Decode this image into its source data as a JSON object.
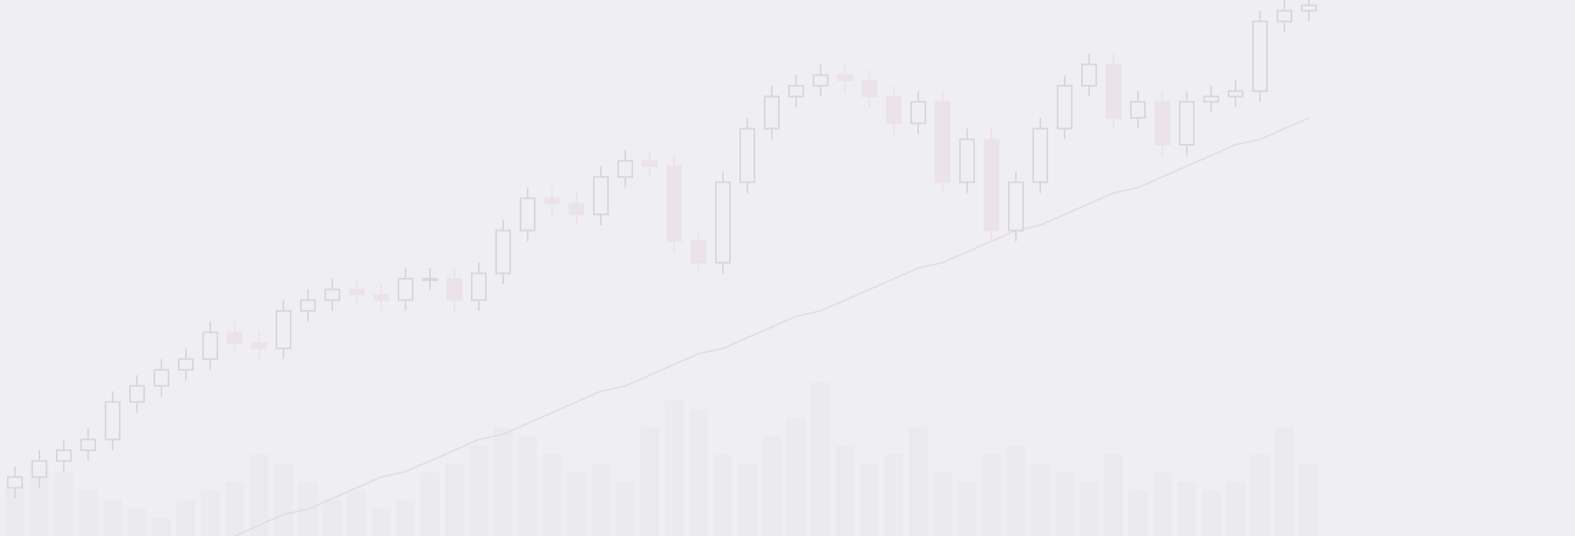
{
  "chart_data": {
    "type": "candlestick",
    "open": [
      9,
      11,
      14,
      16,
      18,
      25,
      28,
      31,
      33,
      38,
      36,
      35,
      42,
      44,
      46,
      45,
      44,
      48,
      48,
      44,
      49,
      57,
      63,
      62,
      60,
      67,
      70,
      69,
      55,
      51,
      66,
      76,
      82,
      84,
      86,
      85,
      82,
      77,
      81,
      66,
      74,
      57,
      66,
      76,
      84,
      88,
      78,
      81,
      73,
      81,
      82,
      83,
      96,
      98
    ],
    "high": [
      13,
      16,
      18,
      20,
      27,
      30,
      33,
      35,
      40,
      40,
      38,
      44,
      46,
      48,
      48,
      47,
      50,
      50,
      50,
      51,
      59,
      65,
      65,
      64,
      69,
      72,
      72,
      71,
      57,
      68,
      78,
      84,
      86,
      88,
      88,
      87,
      84,
      83,
      83,
      76,
      76,
      68,
      78,
      86,
      90,
      90,
      83,
      83,
      83,
      84,
      85,
      98,
      100,
      100
    ],
    "low": [
      7,
      9,
      12,
      14,
      16,
      23,
      26,
      29,
      31,
      34,
      33,
      33,
      40,
      42,
      43,
      42,
      42,
      46,
      42,
      42,
      47,
      55,
      60,
      58,
      58,
      65,
      67,
      53,
      49,
      49,
      64,
      74,
      80,
      82,
      83,
      80,
      75,
      75,
      64,
      64,
      55,
      55,
      64,
      74,
      82,
      76,
      76,
      71,
      71,
      79,
      80,
      81,
      94,
      96
    ],
    "close": [
      11,
      14,
      16,
      18,
      25,
      28,
      31,
      33,
      38,
      36,
      35,
      42,
      44,
      46,
      45,
      44,
      48,
      48,
      44,
      49,
      57,
      63,
      62,
      60,
      67,
      70,
      69,
      55,
      51,
      66,
      76,
      82,
      84,
      86,
      85,
      82,
      77,
      81,
      66,
      74,
      57,
      66,
      76,
      84,
      88,
      78,
      81,
      73,
      81,
      82,
      83,
      96,
      98,
      99
    ],
    "volume": [
      30,
      40,
      35,
      25,
      20,
      15,
      10,
      20,
      25,
      30,
      45,
      40,
      30,
      20,
      25,
      15,
      20,
      35,
      40,
      50,
      60,
      55,
      45,
      35,
      40,
      30,
      60,
      75,
      70,
      45,
      40,
      55,
      65,
      85,
      50,
      40,
      45,
      60,
      35,
      30,
      45,
      50,
      40,
      35,
      30,
      45,
      25,
      35,
      30,
      25,
      30,
      45,
      60,
      40
    ],
    "moving_average": [
      null,
      null,
      null,
      null,
      null,
      null,
      null,
      null,
      null,
      0,
      2,
      4,
      5,
      7,
      9,
      11,
      12,
      14,
      16,
      18,
      19,
      21,
      23,
      25,
      27,
      28,
      30,
      32,
      34,
      35,
      37,
      39,
      41,
      42,
      44,
      46,
      48,
      50,
      51,
      53,
      55,
      57,
      58,
      60,
      62,
      64,
      65,
      67,
      69,
      71,
      73,
      74,
      76,
      78
    ],
    "up_color": "#d6d6db",
    "down_color": "#ebe3e8",
    "volume_color": "#ebebee",
    "line_color": "#e0dde3",
    "ylim": [
      0,
      100
    ],
    "volume_lim": [
      0,
      100
    ]
  }
}
